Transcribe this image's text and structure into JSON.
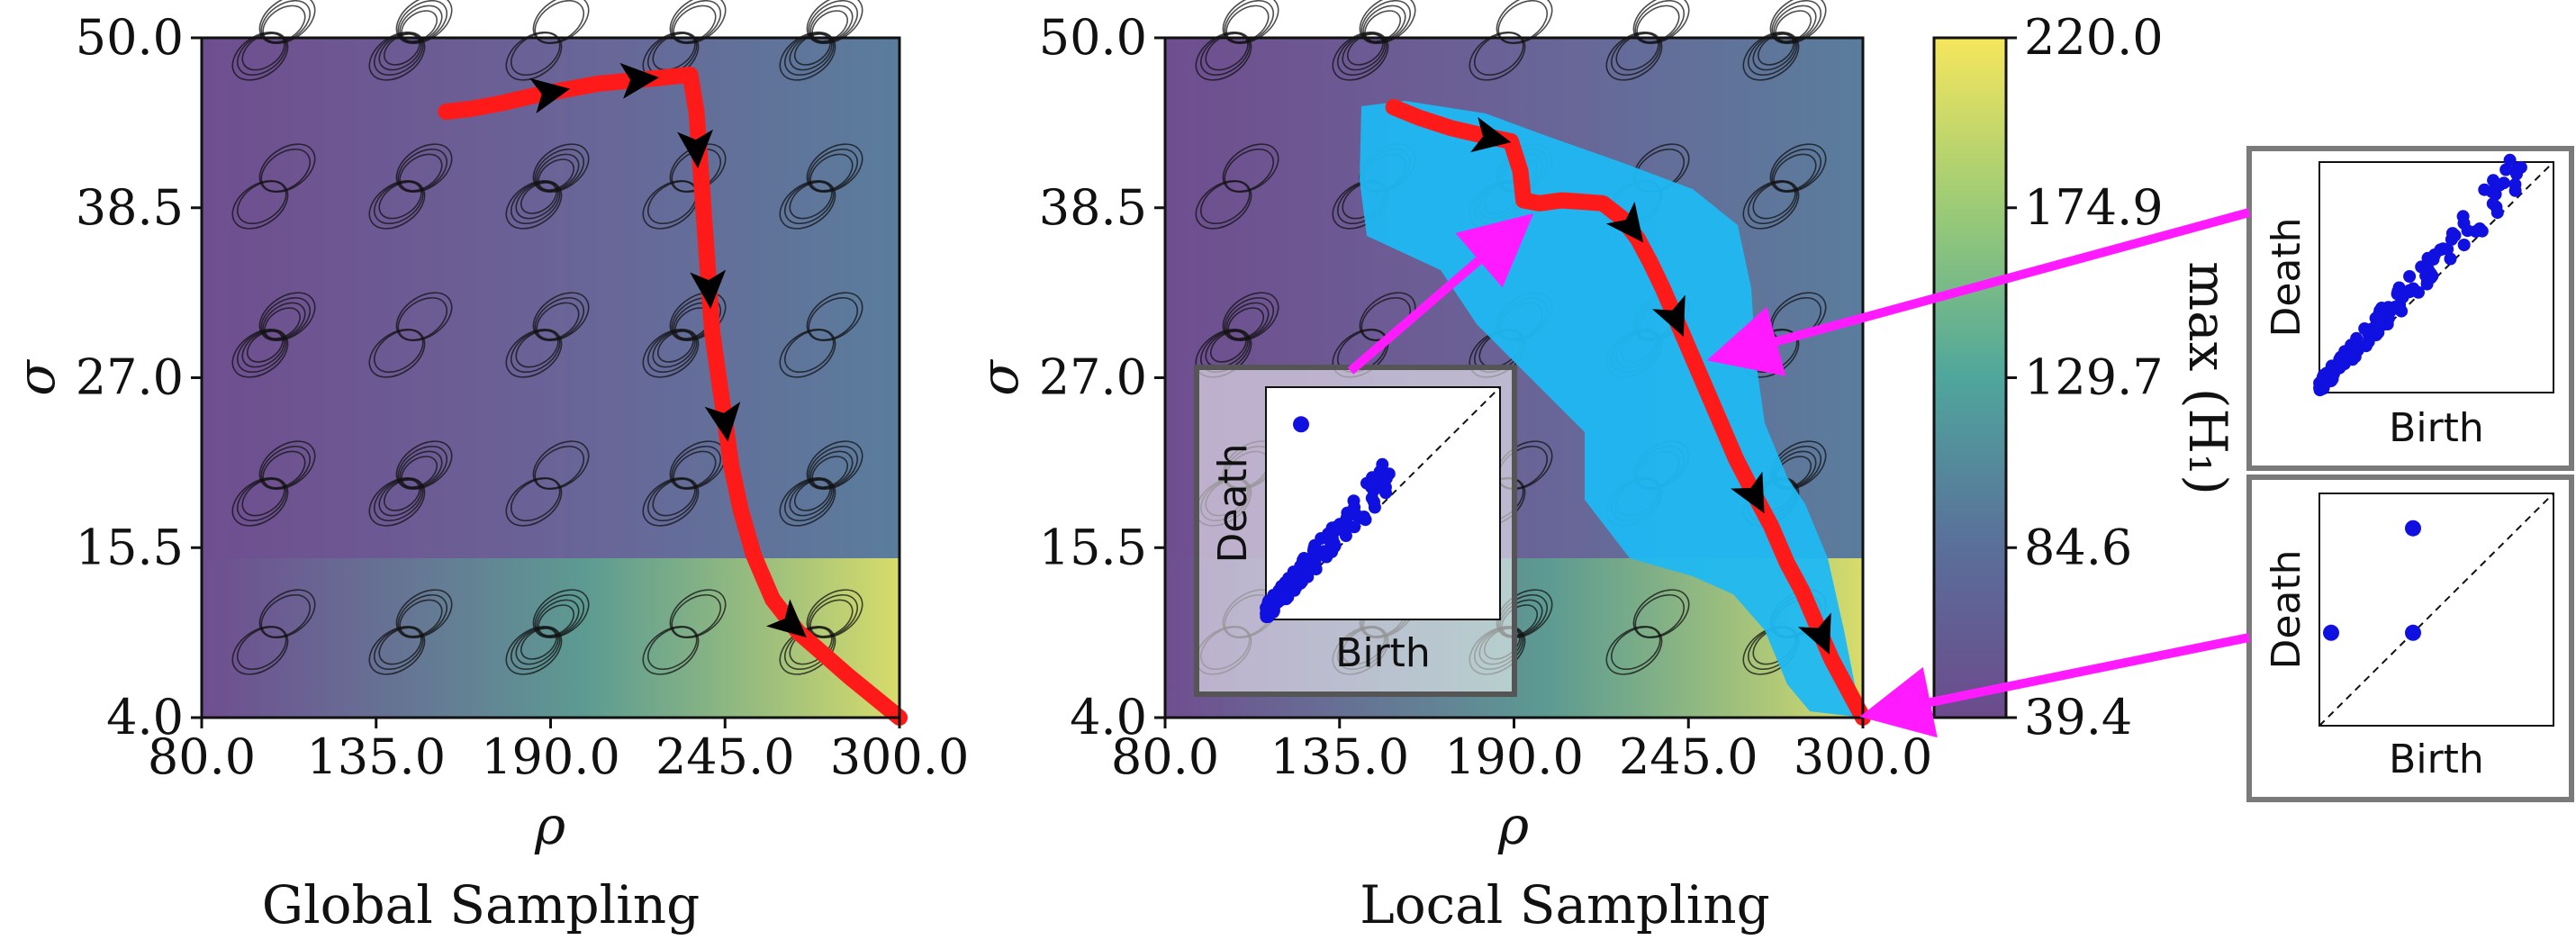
{
  "chart_data": [
    {
      "type": "heatmap",
      "panel": "global",
      "caption": "Global Sampling",
      "xlabel": "ρ",
      "ylabel": "σ",
      "xlim": [
        80.0,
        300.0
      ],
      "ylim": [
        4.0,
        50.0
      ],
      "xticks": [
        "80.0",
        "135.0",
        "190.0",
        "245.0",
        "300.0"
      ],
      "yticks": [
        "4.0",
        "15.5",
        "27.0",
        "38.5",
        "50.0"
      ],
      "path": [
        [
          157,
          45
        ],
        [
          165,
          45.2
        ],
        [
          175,
          45.6
        ],
        [
          185,
          46.1
        ],
        [
          195,
          46.5
        ],
        [
          205,
          46.9
        ],
        [
          215,
          47.1
        ],
        [
          225,
          47.3
        ],
        [
          234,
          47.5
        ],
        [
          236,
          45
        ],
        [
          237,
          42
        ],
        [
          238,
          39
        ],
        [
          239,
          36
        ],
        [
          240,
          33
        ],
        [
          241,
          30
        ],
        [
          243,
          27
        ],
        [
          245,
          24
        ],
        [
          247,
          21
        ],
        [
          250,
          18
        ],
        [
          254,
          15
        ],
        [
          260,
          12
        ],
        [
          268,
          9.8
        ],
        [
          276,
          8.3
        ],
        [
          284,
          6.8
        ],
        [
          292,
          5.4
        ],
        [
          300,
          4.0
        ]
      ],
      "arrows": [
        [
          190,
          46.3
        ],
        [
          218,
          47.2
        ],
        [
          236,
          42.5
        ],
        [
          240,
          33
        ],
        [
          245,
          24
        ],
        [
          266,
          10.3
        ]
      ],
      "colorbar_range": [
        39.4,
        220.0
      ]
    },
    {
      "type": "heatmap",
      "panel": "local",
      "caption": "Local Sampling",
      "xlabel": "ρ",
      "ylabel": "σ",
      "xlim": [
        80.0,
        300.0
      ],
      "ylim": [
        4.0,
        50.0
      ],
      "xticks": [
        "80.0",
        "135.0",
        "190.0",
        "245.0",
        "300.0"
      ],
      "yticks": [
        "4.0",
        "15.5",
        "27.0",
        "38.5",
        "50.0"
      ],
      "path": [
        [
          152,
          45.3
        ],
        [
          160,
          44.6
        ],
        [
          170,
          43.9
        ],
        [
          180,
          43.4
        ],
        [
          189,
          43.0
        ],
        [
          192,
          41
        ],
        [
          193,
          39
        ],
        [
          198,
          38.8
        ],
        [
          205,
          39.0
        ],
        [
          212,
          38.9
        ],
        [
          218,
          38.8
        ],
        [
          224,
          37.8
        ],
        [
          229,
          36.4
        ],
        [
          233,
          34.8
        ],
        [
          237,
          33.0
        ],
        [
          241,
          31.0
        ],
        [
          245,
          29.0
        ],
        [
          250,
          26.5
        ],
        [
          255,
          24.0
        ],
        [
          260,
          21.5
        ],
        [
          266,
          19.0
        ],
        [
          271,
          17.0
        ],
        [
          276,
          14.5
        ],
        [
          281,
          12.5
        ],
        [
          286,
          10.0
        ],
        [
          290,
          8.0
        ],
        [
          295,
          6.0
        ],
        [
          300,
          4.0
        ]
      ],
      "arrows": [
        [
          183,
          43.2
        ],
        [
          227,
          37.2
        ],
        [
          241,
          31.0
        ],
        [
          266,
          19.0
        ],
        [
          287,
          9.5
        ]
      ],
      "colorbar_range": [
        39.4,
        220.0
      ]
    },
    {
      "type": "colorbar",
      "label": "max (H₁)",
      "ticks": [
        "220.0",
        "174.9",
        "129.7",
        "84.6",
        "39.4"
      ],
      "range": [
        39.4,
        220.0
      ],
      "colormap": "viridis"
    },
    {
      "type": "scatter",
      "panel": "persistence-diagram-inset",
      "xlabel": "Birth",
      "ylabel": "Death",
      "outlier": [
        0.15,
        0.84
      ],
      "cluster": "dense points near the diagonal"
    },
    {
      "type": "scatter",
      "panel": "persistence-diagram-right-top",
      "xlabel": "Birth",
      "ylabel": "Death",
      "cluster": "dense points near the diagonal"
    },
    {
      "type": "scatter",
      "panel": "persistence-diagram-right-bottom",
      "xlabel": "Birth",
      "ylabel": "Death",
      "points": [
        [
          0.05,
          0.4
        ],
        [
          0.4,
          0.4
        ],
        [
          0.4,
          0.85
        ]
      ]
    }
  ],
  "colors": {
    "path": "#ff1a1a",
    "local_region": "#1fb8f2",
    "callout_arrow": "#ff1aff",
    "points": "#1010e0",
    "arrow_head": "#000000"
  }
}
